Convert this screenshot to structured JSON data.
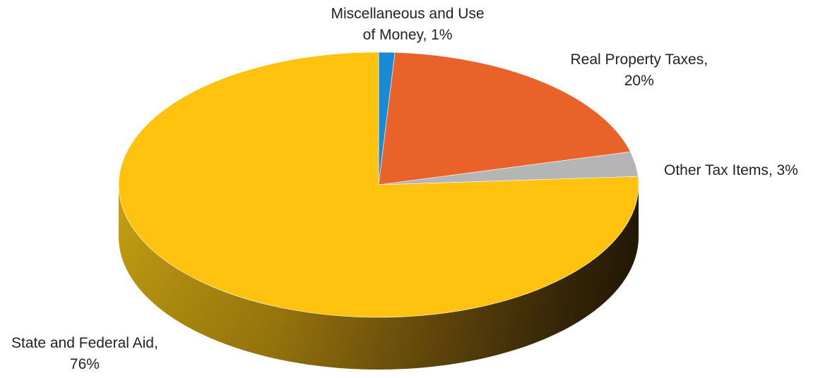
{
  "chart_data": {
    "type": "pie",
    "style": "3d",
    "legend": "none",
    "slices": [
      {
        "name": "Miscellaneous and Use of Money",
        "value": 1,
        "label_lines": [
          "Miscellaneous and Use",
          "of Money, 1%"
        ],
        "color": "#1a8ad4"
      },
      {
        "name": "Real Property Taxes",
        "value": 20,
        "label_lines": [
          "Real Property Taxes,",
          "20%"
        ],
        "color": "#e8622a"
      },
      {
        "name": "Other Tax Items",
        "value": 3,
        "label_lines": [
          "Other Tax Items, 3%"
        ],
        "color": "#b5b5b5"
      },
      {
        "name": "State and Federal Aid",
        "value": 76,
        "label_lines": [
          "State and Federal Aid,",
          "76%"
        ],
        "color": "#ffc20e"
      }
    ]
  }
}
